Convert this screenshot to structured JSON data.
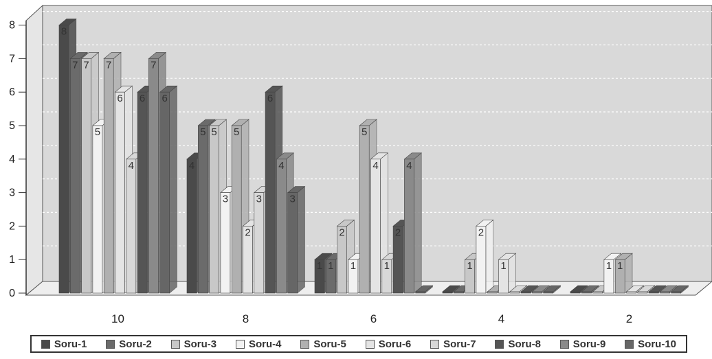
{
  "chart_data": {
    "type": "bar",
    "categories": [
      "10",
      "8",
      "6",
      "4",
      "2"
    ],
    "ylim": [
      0,
      8
    ],
    "yticks": [
      "0",
      "1",
      "2",
      "3",
      "4",
      "5",
      "6",
      "7",
      "8"
    ],
    "grid": true,
    "legend_position": "bottom",
    "series": [
      {
        "name": "Soru-1",
        "color": "#4a4a4a",
        "values": [
          8,
          4,
          1,
          0,
          0
        ]
      },
      {
        "name": "Soru-2",
        "color": "#6b6b6b",
        "values": [
          7,
          5,
          1,
          0,
          0
        ]
      },
      {
        "name": "Soru-3",
        "color": "#c8c8c8",
        "values": [
          7,
          5,
          2,
          1,
          0
        ]
      },
      {
        "name": "Soru-4",
        "color": "#f2f2f2",
        "values": [
          5,
          3,
          1,
          2,
          1
        ]
      },
      {
        "name": "Soru-5",
        "color": "#b0b0b0",
        "values": [
          7,
          5,
          5,
          0,
          1
        ]
      },
      {
        "name": "Soru-6",
        "color": "#e4e4e4",
        "values": [
          6,
          2,
          4,
          1,
          0
        ]
      },
      {
        "name": "Soru-7",
        "color": "#d8d8d8",
        "values": [
          4,
          3,
          1,
          0,
          0
        ]
      },
      {
        "name": "Soru-8",
        "color": "#555555",
        "values": [
          6,
          6,
          2,
          0,
          0
        ]
      },
      {
        "name": "Soru-9",
        "color": "#8a8a8a",
        "values": [
          7,
          4,
          4,
          0,
          0
        ]
      },
      {
        "name": "Soru-10",
        "color": "#666666",
        "values": [
          6,
          3,
          0,
          0,
          0
        ]
      }
    ]
  }
}
